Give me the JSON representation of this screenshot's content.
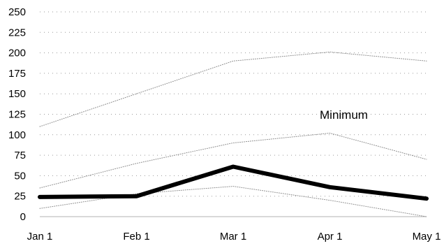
{
  "chart_data": {
    "type": "line",
    "x": [
      "Jan 1",
      "Feb 1",
      "Mar 1",
      "Apr 1",
      "May 1"
    ],
    "ylim": [
      0,
      250
    ],
    "yticks": [
      0,
      25,
      50,
      75,
      100,
      125,
      150,
      175,
      200,
      225,
      250
    ],
    "grid": true,
    "annotation": "Minimum",
    "series": [
      {
        "values": [
          110,
          150,
          190,
          201,
          190
        ],
        "emphasis": false
      },
      {
        "values": [
          35,
          65,
          90,
          102,
          70
        ],
        "emphasis": false
      },
      {
        "values": [
          10,
          28,
          37,
          20,
          0
        ],
        "emphasis": false
      },
      {
        "values": [
          24,
          25,
          61,
          36,
          22
        ],
        "emphasis": true
      }
    ]
  }
}
